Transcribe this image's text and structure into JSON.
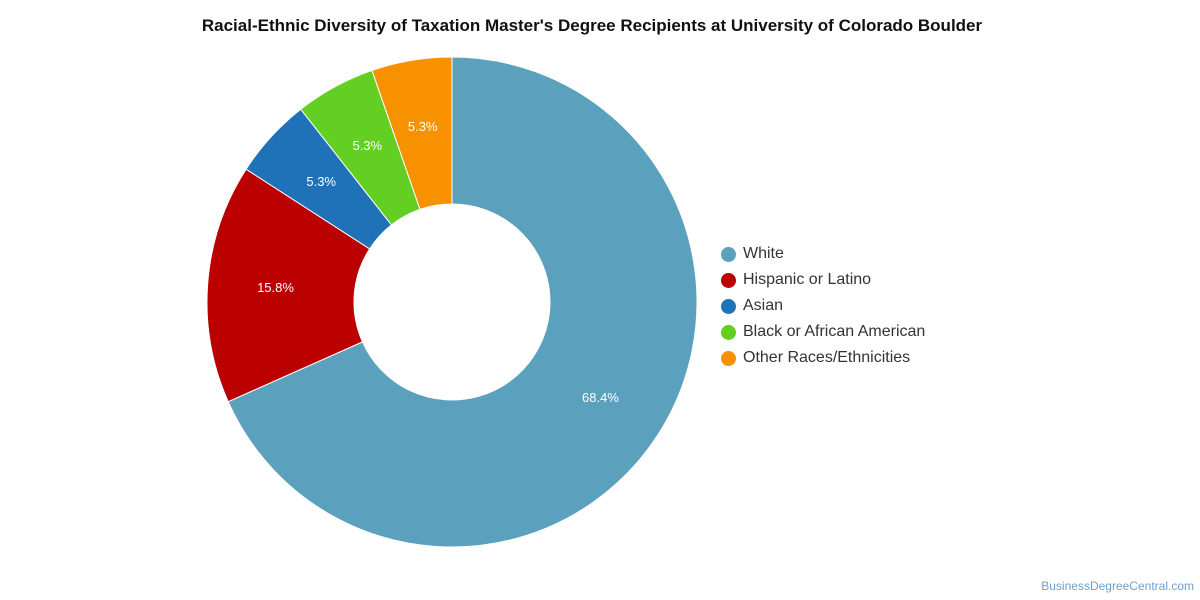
{
  "chart_data": {
    "type": "pie",
    "donut": true,
    "title": "Racial-Ethnic Diversity of Taxation Master's Degree Recipients at University of Colorado Boulder",
    "slices": [
      {
        "label": "White",
        "value": 68.4,
        "display": "68.4%",
        "color": "#5ba0bd"
      },
      {
        "label": "Hispanic or Latino",
        "value": 15.8,
        "display": "15.8%",
        "color": "#bb0000"
      },
      {
        "label": "Asian",
        "value": 5.3,
        "display": "5.3%",
        "color": "#1f72b8"
      },
      {
        "label": "Black or African American",
        "value": 5.3,
        "display": "5.3%",
        "color": "#62cf22"
      },
      {
        "label": "Other Races/Ethnicities",
        "value": 5.3,
        "display": "5.3%",
        "color": "#f79100"
      }
    ],
    "start": "12 o'clock",
    "direction": "clockwise",
    "legend_position": "right"
  },
  "footer": {
    "source": "BusinessDegreeCentral.com"
  }
}
